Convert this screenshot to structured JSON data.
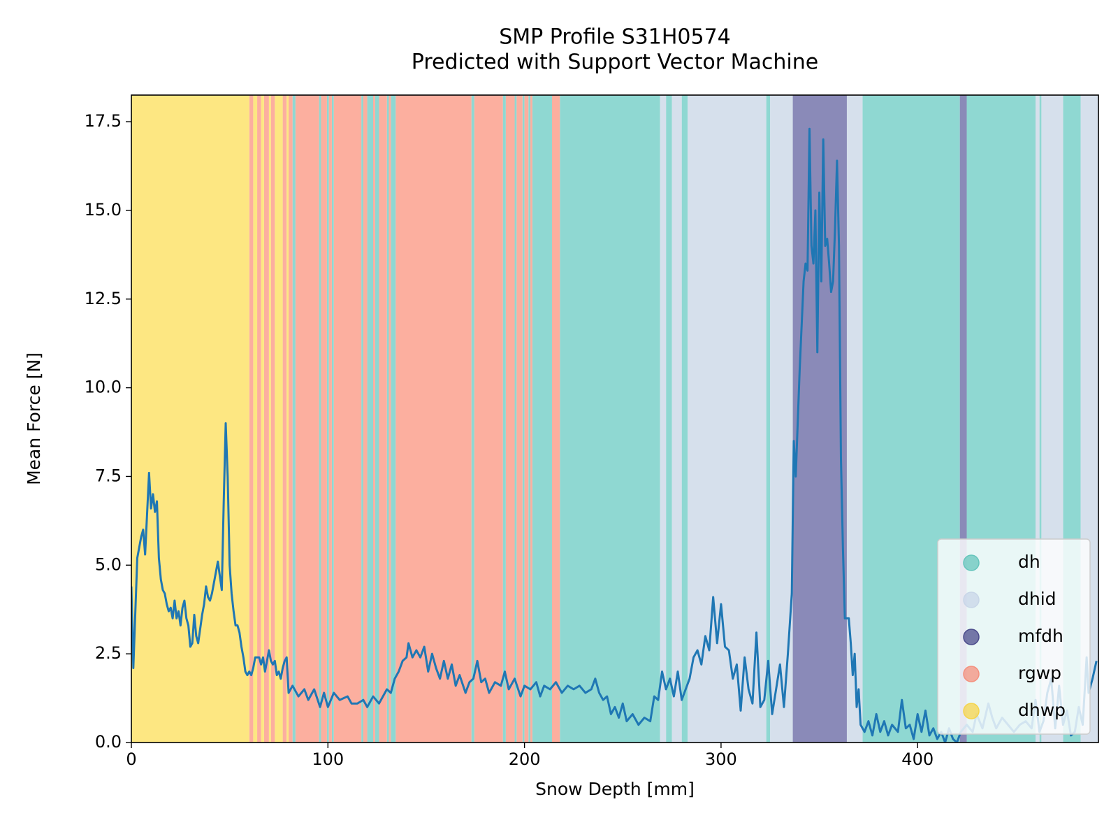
{
  "chart_data": {
    "type": "line",
    "title": [
      "SMP Profile S31H0574",
      "Predicted with Support Vector Machine"
    ],
    "xlabel": "Snow Depth [mm]",
    "ylabel": "Mean Force [N]",
    "xlim": [
      0,
      492
    ],
    "ylim": [
      0,
      18.25
    ],
    "xticks": [
      0,
      100,
      200,
      300,
      400
    ],
    "yticks": [
      {
        "value": 0,
        "label": "0.0"
      },
      2.5,
      {
        "value": 5,
        "label": "5.0"
      },
      7.5,
      {
        "value": 10,
        "label": "10.0"
      },
      12.5,
      {
        "value": 15,
        "label": "15.0"
      },
      17.5
    ],
    "legend": "lower right",
    "line": {
      "color": "#1f77b4",
      "x": [
        0,
        1,
        3,
        5,
        6,
        7,
        9,
        10,
        11,
        12,
        13,
        14,
        15,
        16,
        17,
        18,
        19,
        20,
        21,
        22,
        23,
        24,
        25,
        26,
        27,
        28,
        29,
        30,
        31,
        32,
        33,
        34,
        35,
        36,
        37,
        38,
        39,
        40,
        41,
        42,
        43,
        44,
        45,
        46,
        47,
        48,
        49,
        50,
        51,
        52,
        53,
        54,
        55,
        56,
        57,
        58,
        59,
        60,
        61,
        62,
        63,
        65,
        66,
        67,
        68,
        69,
        70,
        71,
        72,
        73,
        74,
        75,
        76,
        77,
        78,
        79,
        80,
        82,
        85,
        88,
        90,
        93,
        96,
        98,
        100,
        103,
        106,
        110,
        112,
        115,
        118,
        120,
        123,
        126,
        128,
        130,
        132,
        134,
        136,
        138,
        140,
        141,
        143,
        145,
        147,
        149,
        151,
        153,
        155,
        157,
        159,
        161,
        163,
        165,
        167,
        170,
        172,
        174,
        176,
        178,
        180,
        182,
        185,
        188,
        190,
        192,
        195,
        198,
        200,
        203,
        206,
        208,
        210,
        213,
        216,
        219,
        222,
        225,
        228,
        231,
        234,
        236,
        238,
        240,
        242,
        244,
        246,
        248,
        250,
        252,
        255,
        258,
        261,
        264,
        266,
        268,
        270,
        272,
        274,
        276,
        278,
        280,
        282,
        284,
        286,
        288,
        290,
        292,
        294,
        296,
        298,
        300,
        302,
        304,
        306,
        308,
        310,
        312,
        314,
        316,
        318,
        320,
        322,
        324,
        326,
        328,
        330,
        332,
        334,
        336,
        337,
        338,
        340,
        342,
        343,
        344,
        345,
        346,
        347,
        348,
        349,
        350,
        351,
        352,
        353,
        354,
        355,
        356,
        357,
        358,
        359,
        360,
        361,
        362,
        363,
        365,
        366,
        367,
        368,
        369,
        370,
        371,
        373,
        375,
        377,
        379,
        381,
        383,
        385,
        387,
        390,
        392,
        394,
        396,
        398,
        400,
        402,
        404,
        406,
        408,
        410,
        412,
        414,
        416,
        418,
        420,
        422,
        425,
        428,
        430,
        433,
        436,
        438,
        440,
        443,
        446,
        449,
        452,
        455,
        458,
        460,
        462,
        464,
        466,
        468,
        470,
        472,
        474,
        476,
        478,
        480,
        482,
        484,
        486,
        487,
        489,
        491
      ],
      "values": [
        4.4,
        2.1,
        5.2,
        5.8,
        6.0,
        5.3,
        7.6,
        6.6,
        7.0,
        6.5,
        6.8,
        5.2,
        4.6,
        4.3,
        4.2,
        3.9,
        3.7,
        3.8,
        3.5,
        4.0,
        3.5,
        3.7,
        3.3,
        3.8,
        4.0,
        3.5,
        3.3,
        2.7,
        2.8,
        3.6,
        3.0,
        2.8,
        3.2,
        3.6,
        3.9,
        4.4,
        4.1,
        4.0,
        4.2,
        4.5,
        4.8,
        5.1,
        4.7,
        4.3,
        6.8,
        9.0,
        7.5,
        5.0,
        4.2,
        3.7,
        3.3,
        3.3,
        3.1,
        2.7,
        2.4,
        2.0,
        1.9,
        2.0,
        1.9,
        2.1,
        2.4,
        2.4,
        2.2,
        2.4,
        2.0,
        2.3,
        2.6,
        2.3,
        2.2,
        2.3,
        1.9,
        2.0,
        1.8,
        2.1,
        2.3,
        2.4,
        1.4,
        1.6,
        1.3,
        1.5,
        1.2,
        1.5,
        1.0,
        1.4,
        1.0,
        1.4,
        1.2,
        1.3,
        1.1,
        1.1,
        1.2,
        1.0,
        1.3,
        1.1,
        1.3,
        1.5,
        1.4,
        1.8,
        2.0,
        2.3,
        2.4,
        2.8,
        2.4,
        2.6,
        2.4,
        2.7,
        2.0,
        2.5,
        2.1,
        1.8,
        2.3,
        1.8,
        2.2,
        1.6,
        1.9,
        1.4,
        1.7,
        1.8,
        2.3,
        1.7,
        1.8,
        1.4,
        1.7,
        1.6,
        2.0,
        1.5,
        1.8,
        1.3,
        1.6,
        1.5,
        1.7,
        1.3,
        1.6,
        1.5,
        1.7,
        1.4,
        1.6,
        1.5,
        1.6,
        1.4,
        1.5,
        1.8,
        1.4,
        1.2,
        1.3,
        0.8,
        1.0,
        0.7,
        1.1,
        0.6,
        0.8,
        0.5,
        0.7,
        0.6,
        1.3,
        1.2,
        2.0,
        1.5,
        1.8,
        1.3,
        2.0,
        1.2,
        1.5,
        1.8,
        2.4,
        2.6,
        2.2,
        3.0,
        2.6,
        4.1,
        2.8,
        3.9,
        2.7,
        2.6,
        1.8,
        2.2,
        0.9,
        2.4,
        1.5,
        1.1,
        3.1,
        1.0,
        1.2,
        2.3,
        0.8,
        1.5,
        2.2,
        1.0,
        2.5,
        4.2,
        8.5,
        7.5,
        10.5,
        13.0,
        13.5,
        13.3,
        17.3,
        14.0,
        13.5,
        15.0,
        11.0,
        15.5,
        13.0,
        17.0,
        14.0,
        14.2,
        13.5,
        12.7,
        13.0,
        14.5,
        16.4,
        14.0,
        8.0,
        5.5,
        3.5,
        3.5,
        2.8,
        1.9,
        2.5,
        1.0,
        1.5,
        0.5,
        0.3,
        0.6,
        0.2,
        0.8,
        0.3,
        0.6,
        0.2,
        0.5,
        0.3,
        1.2,
        0.4,
        0.5,
        0.1,
        0.8,
        0.3,
        0.9,
        0.2,
        0.4,
        0.1,
        0.3,
        0.0,
        0.4,
        0.1,
        0.0,
        0.3,
        0.5,
        0.3,
        0.8,
        0.4,
        1.1,
        0.7,
        0.4,
        0.7,
        0.5,
        0.3,
        0.5,
        0.6,
        0.4,
        1.2,
        0.3,
        0.6,
        1.4,
        1.8,
        0.4,
        1.6,
        0.5,
        0.9,
        0.2,
        0.3,
        1.0,
        0.5,
        2.4,
        1.4,
        1.8,
        2.3
      ]
    },
    "series": [
      {
        "name": "dh",
        "color": "#8fd8d2",
        "marker_color": "#66c5bc",
        "spans": [
          [
            82,
            83.5
          ],
          [
            95.5,
            96.5
          ],
          [
            99.5,
            100.5
          ],
          [
            102,
            103
          ],
          [
            117,
            118
          ],
          [
            120,
            123
          ],
          [
            124,
            126
          ],
          [
            130,
            131
          ],
          [
            132,
            134.5
          ],
          [
            173,
            174.5
          ],
          [
            189,
            190.5
          ],
          [
            195,
            196
          ],
          [
            199,
            200
          ],
          [
            202,
            203
          ],
          [
            204,
            214
          ],
          [
            218,
            269
          ],
          [
            272,
            275
          ],
          [
            280,
            283
          ],
          [
            323,
            325
          ],
          [
            372,
            421.5
          ],
          [
            425,
            460
          ],
          [
            462,
            463
          ],
          [
            474,
            483
          ]
        ]
      },
      {
        "name": "dhid",
        "color": "#d6e0ec",
        "marker_color": "#c8d6e8",
        "spans": [
          [
            269,
            272
          ],
          [
            275,
            280
          ],
          [
            283,
            323
          ],
          [
            325,
            336.5
          ],
          [
            364,
            372
          ],
          [
            460,
            462
          ],
          [
            463,
            474
          ],
          [
            483,
            492
          ]
        ]
      },
      {
        "name": "mfdh",
        "color": "#8a8ab8",
        "marker_color": "#4c4c8c",
        "spans": [
          [
            336.5,
            364
          ],
          [
            421.5,
            425
          ]
        ]
      },
      {
        "name": "rgwp",
        "color": "#fcaf9f",
        "marker_color": "#f4907e",
        "spans": [
          [
            60,
            62
          ],
          [
            64,
            66
          ],
          [
            67.5,
            70
          ],
          [
            71,
            73
          ],
          [
            77,
            79
          ],
          [
            80,
            82
          ],
          [
            83.5,
            95.5
          ],
          [
            96.5,
            99.5
          ],
          [
            100.5,
            102
          ],
          [
            103,
            117
          ],
          [
            118,
            120
          ],
          [
            123,
            124
          ],
          [
            126,
            130
          ],
          [
            131,
            132
          ],
          [
            134.5,
            173
          ],
          [
            174.5,
            189
          ],
          [
            190.5,
            195
          ],
          [
            196,
            199
          ],
          [
            200,
            202
          ],
          [
            203,
            204
          ],
          [
            214,
            218
          ]
        ]
      },
      {
        "name": "dhwp",
        "color": "#fde782",
        "marker_color": "#f5d44c",
        "spans": [
          [
            0,
            60
          ],
          [
            62,
            64
          ],
          [
            66,
            67.5
          ],
          [
            70,
            71
          ],
          [
            73,
            77
          ],
          [
            79,
            80
          ]
        ]
      }
    ]
  }
}
